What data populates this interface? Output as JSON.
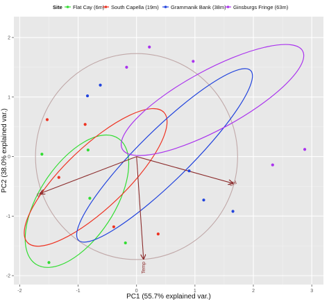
{
  "chart_data": {
    "type": "scatter",
    "title": "",
    "xlabel": "PC1 (55.7% explained var.)",
    "ylabel": "PC2 (38.0% explained var.)",
    "xlim": [
      -2.1,
      3.2
    ],
    "ylim": [
      -2.15,
      2.35
    ],
    "x_ticks": [
      -2,
      -1,
      0,
      1,
      2,
      3
    ],
    "y_ticks": [
      -2,
      -1,
      0,
      1,
      2
    ],
    "x_tick_labels": [
      "-2",
      "-1",
      "0",
      "1",
      "2",
      "3"
    ],
    "y_tick_labels": [
      "-2",
      "-1",
      "0",
      "1",
      "2"
    ],
    "grid": true,
    "legend": {
      "title": "Site",
      "position": "top"
    },
    "series": [
      {
        "name": "Flat Cay (6m)",
        "color": "#33dd33",
        "points": [
          [
            -1.62,
            0.04
          ],
          [
            -0.83,
            0.11
          ],
          [
            -0.8,
            -0.7
          ],
          [
            -0.19,
            -1.45
          ],
          [
            -1.5,
            -1.78
          ]
        ],
        "ellipse": {
          "cx": -1.02,
          "cy": -0.75,
          "rx": 1.27,
          "ry": 0.64,
          "angle": -56
        }
      },
      {
        "name": "South Capella (19m)",
        "color": "#ee3322",
        "points": [
          [
            -1.53,
            0.62
          ],
          [
            -0.88,
            0.54
          ],
          [
            -1.33,
            -0.35
          ],
          [
            -0.39,
            -1.18
          ],
          [
            0.37,
            -1.3
          ]
        ],
        "ellipse": {
          "cx": -0.7,
          "cy": -0.35,
          "rx": 1.6,
          "ry": 0.52,
          "angle": -43
        }
      },
      {
        "name": "Grammanik Bank (38m)",
        "color": "#2244dd",
        "points": [
          [
            -0.84,
            1.02
          ],
          [
            -0.62,
            1.2
          ],
          [
            0.9,
            -0.24
          ],
          [
            1.15,
            -0.73
          ],
          [
            1.65,
            -0.92
          ]
        ],
        "ellipse": {
          "cx": 0.48,
          "cy": 0.02,
          "rx": 2.05,
          "ry": 0.43,
          "angle": -44
        }
      },
      {
        "name": "Ginsburgs Fringe (63m)",
        "color": "#aa33ee",
        "points": [
          [
            -0.17,
            1.5
          ],
          [
            0.22,
            1.84
          ],
          [
            0.97,
            1.6
          ],
          [
            2.33,
            -0.14
          ],
          [
            2.88,
            0.12
          ]
        ],
        "ellipse": {
          "cx": 1.3,
          "cy": 0.95,
          "rx": 1.75,
          "ry": 0.5,
          "angle": -28
        }
      }
    ],
    "circle": {
      "cx": 0,
      "cy": 0,
      "r": 1.73,
      "color": "#c0a8a8"
    },
    "loadings": [
      {
        "label": "Chl",
        "x": 1.65,
        "y": -0.45
      },
      {
        "label": "Temp",
        "x": 0.12,
        "y": -1.72
      },
      {
        "label": "par",
        "x": -1.65,
        "y": -0.62
      }
    ],
    "loading_color": "#8b2b2b"
  }
}
